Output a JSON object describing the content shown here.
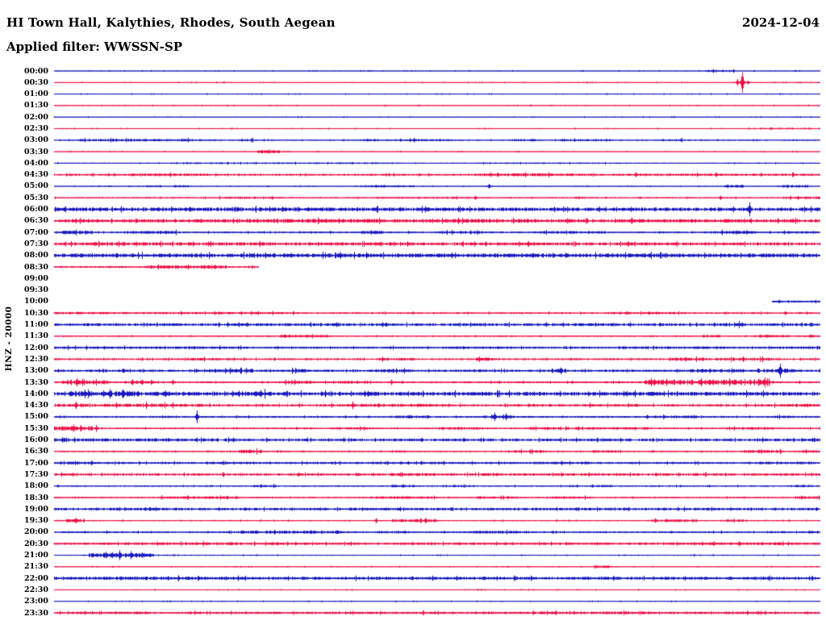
{
  "header": {
    "title": "HI Town Hall, Kalythies, Rhodes, South Aegean",
    "date": "2024-12-04",
    "filter": "Applied filter: WWSSN-SP"
  },
  "axis": {
    "left_label": "HNZ - 20000",
    "row_interval_minutes": 30
  },
  "chart_data": {
    "type": "line",
    "title": "HI Town Hall, Kalythies, Rhodes, South Aegean",
    "subtitle": "Applied filter: WWSSN-SP",
    "date": "2024-12-04",
    "ylabel": "HNZ - 20000",
    "legend_position": "none",
    "grid": false,
    "trace_colors": {
      "even_rows": "#1818bd",
      "odd_rows": "#ec1048"
    },
    "rows": [
      {
        "t": "00:00",
        "base": 0.4,
        "segs": [
          [
            0.85,
            0.89,
            1.2
          ]
        ],
        "spikes": []
      },
      {
        "t": "00:30",
        "base": 0.4,
        "segs": [],
        "spikes": [
          [
            0.899,
            13
          ],
          [
            0.893,
            4
          ],
          [
            0.906,
            3
          ]
        ]
      },
      {
        "t": "01:00",
        "base": 0.4,
        "segs": [],
        "spikes": []
      },
      {
        "t": "01:30",
        "base": 0.4,
        "segs": [],
        "spikes": []
      },
      {
        "t": "02:00",
        "base": 0.4,
        "segs": [
          [
            0.965,
            0.975,
            0.9
          ]
        ],
        "spikes": []
      },
      {
        "t": "02:30",
        "base": 0.45,
        "segs": [
          [
            0.905,
            0.99,
            1.0
          ]
        ],
        "spikes": []
      },
      {
        "t": "03:00",
        "base": 0.7,
        "segs": [
          [
            0.03,
            0.21,
            1.4
          ],
          [
            0.24,
            0.26,
            1.6
          ],
          [
            0.4,
            0.52,
            1.3
          ],
          [
            0.6,
            0.63,
            1.4
          ],
          [
            0.66,
            0.73,
            1.3
          ],
          [
            0.79,
            0.82,
            1.4
          ]
        ],
        "spikes": [
          [
            0.47,
            3
          ]
        ]
      },
      {
        "t": "03:30",
        "base": 0.5,
        "segs": [
          [
            0.265,
            0.295,
            1.8
          ]
        ],
        "spikes": []
      },
      {
        "t": "04:00",
        "base": 0.6,
        "segs": [
          [
            0.15,
            0.45,
            0.9
          ],
          [
            0.55,
            0.75,
            0.8
          ]
        ],
        "spikes": []
      },
      {
        "t": "04:30",
        "base": 1.1,
        "segs": [
          [
            0.1,
            0.2,
            1.6
          ],
          [
            0.55,
            0.65,
            1.7
          ],
          [
            0.55,
            1,
            1.4
          ]
        ],
        "spikes": [
          [
            0.615,
            3
          ],
          [
            0.76,
            3.5
          ],
          [
            0.865,
            2.5
          ]
        ]
      },
      {
        "t": "05:00",
        "base": 0.5,
        "segs": [
          [
            0.12,
            0.14,
            1.2
          ],
          [
            0.155,
            0.175,
            1.4
          ],
          [
            0.4,
            0.47,
            1.3
          ],
          [
            0.875,
            0.9,
            1.5
          ],
          [
            0.945,
            0.985,
            1.4
          ]
        ],
        "spikes": [
          [
            0.568,
            3
          ]
        ]
      },
      {
        "t": "05:30",
        "base": 0.8,
        "segs": [
          [
            0.21,
            0.3,
            1.2
          ],
          [
            0.42,
            0.55,
            1.1
          ],
          [
            0.95,
            1,
            1.5
          ]
        ],
        "spikes": [
          [
            0.55,
            3.5
          ],
          [
            0.685,
            2
          ],
          [
            0.87,
            3
          ]
        ]
      },
      {
        "t": "06:00",
        "base": 2.0,
        "segs": [
          [
            0.0,
            0.5,
            2.2
          ]
        ],
        "spikes": [
          [
            0.908,
            8
          ]
        ]
      },
      {
        "t": "06:30",
        "base": 2.0,
        "segs": [
          [
            0.25,
            0.45,
            2.3
          ],
          [
            0.52,
            0.62,
            2.2
          ]
        ],
        "spikes": [
          [
            0.755,
            4
          ]
        ]
      },
      {
        "t": "07:00",
        "base": 1.0,
        "segs": [
          [
            0.008,
            0.05,
            2.2
          ],
          [
            0.09,
            0.16,
            1.8
          ],
          [
            0.4,
            0.43,
            2.0
          ],
          [
            0.5,
            0.56,
            1.6
          ],
          [
            0.63,
            0.72,
            1.6
          ],
          [
            0.86,
            0.92,
            1.8
          ],
          [
            0.95,
            1,
            1.4
          ]
        ],
        "spikes": []
      },
      {
        "t": "07:30",
        "base": 1.8,
        "segs": [
          [
            0.05,
            0.3,
            2.0
          ]
        ],
        "spikes": [
          [
            0.62,
            4.5
          ]
        ]
      },
      {
        "t": "08:00",
        "base": 2.2,
        "segs": [],
        "spikes": [
          [
            0.035,
            3.5
          ],
          [
            0.3,
            3.5
          ],
          [
            0.87,
            3
          ]
        ]
      },
      {
        "t": "08:30",
        "range": [
          0,
          0.267
        ],
        "base": 1.0,
        "segs": [
          [
            0.12,
            0.225,
            2.0
          ]
        ],
        "spikes": [
          [
            0.21,
            3
          ]
        ]
      },
      {
        "t": "09:00",
        "base": 0,
        "segs": [],
        "spikes": []
      },
      {
        "t": "09:30",
        "base": 0,
        "segs": [],
        "spikes": []
      },
      {
        "t": "10:00",
        "range": [
          0.938,
          1
        ],
        "base": 1.1,
        "segs": [],
        "spikes": [
          [
            0.947,
            2.5
          ]
        ]
      },
      {
        "t": "10:30",
        "base": 1.0,
        "segs": [
          [
            0.0,
            0.3,
            1.3
          ],
          [
            0.72,
            0.82,
            1.4
          ]
        ],
        "spikes": [
          [
            0.955,
            3
          ]
        ]
      },
      {
        "t": "11:00",
        "base": 1.6,
        "segs": [],
        "spikes": [
          [
            0.862,
            3.5
          ],
          [
            0.895,
            4
          ]
        ]
      },
      {
        "t": "11:30",
        "base": 0.7,
        "segs": [
          [
            0.295,
            0.36,
            1.6
          ],
          [
            0.845,
            0.87,
            1.6
          ],
          [
            0.92,
            0.96,
            1.5
          ],
          [
            0.985,
            1,
            1.8
          ]
        ],
        "spikes": [
          [
            0.3,
            2.5
          ],
          [
            0.93,
            2.5
          ]
        ]
      },
      {
        "t": "12:00",
        "base": 1.2,
        "segs": [
          [
            0.0,
            0.25,
            1.4
          ],
          [
            0.52,
            0.6,
            1.5
          ],
          [
            0.74,
            0.88,
            1.5
          ],
          [
            0.94,
            1,
            1.6
          ]
        ],
        "spikes": []
      },
      {
        "t": "12:30",
        "base": 1.1,
        "segs": [
          [
            0.17,
            0.23,
            1.5
          ],
          [
            0.42,
            0.47,
            1.5
          ],
          [
            0.55,
            0.58,
            1.8
          ],
          [
            0.8,
            0.94,
            1.8
          ]
        ],
        "spikes": [
          [
            0.555,
            3.5
          ],
          [
            0.825,
            3
          ],
          [
            0.9,
            4
          ],
          [
            0.925,
            3.5
          ]
        ]
      },
      {
        "t": "13:00",
        "base": 1.3,
        "segs": [
          [
            0.2,
            0.26,
            2.0
          ],
          [
            0.31,
            0.33,
            2.2
          ],
          [
            0.42,
            0.47,
            1.8
          ],
          [
            0.52,
            0.56,
            1.6
          ],
          [
            0.65,
            0.67,
            2.5
          ],
          [
            0.83,
            0.9,
            2.0
          ],
          [
            0.93,
            0.97,
            2.2
          ]
        ],
        "spikes": [
          [
            0.662,
            5
          ],
          [
            0.948,
            12
          ],
          [
            0.92,
            4
          ]
        ]
      },
      {
        "t": "13:30",
        "base": 1.1,
        "segs": [
          [
            0.01,
            0.07,
            2.5
          ],
          [
            0.1,
            0.13,
            2.2
          ],
          [
            0.3,
            0.34,
            1.8
          ],
          [
            0.37,
            0.4,
            1.8
          ],
          [
            0.77,
            0.935,
            3.0
          ]
        ],
        "spikes": [
          [
            0.03,
            5
          ],
          [
            0.115,
            4
          ],
          [
            0.155,
            4
          ],
          [
            0.44,
            3.5
          ],
          [
            0.78,
            5
          ],
          [
            0.8,
            4
          ],
          [
            0.845,
            5
          ],
          [
            0.875,
            4
          ]
        ]
      },
      {
        "t": "14:00",
        "base": 2.2,
        "segs": [
          [
            0.02,
            0.05,
            3.0
          ],
          [
            0.07,
            0.11,
            3.2
          ],
          [
            0.13,
            0.16,
            2.8
          ],
          [
            0.26,
            0.28,
            3.2
          ],
          [
            0.4,
            0.42,
            2.6
          ]
        ],
        "spikes": [
          [
            0.04,
            6
          ],
          [
            0.09,
            7
          ],
          [
            0.145,
            5
          ],
          [
            0.27,
            6
          ],
          [
            0.41,
            4
          ]
        ]
      },
      {
        "t": "14:30",
        "base": 1.3,
        "segs": [
          [
            0.0,
            0.2,
            1.8
          ],
          [
            0.36,
            0.5,
            1.7
          ],
          [
            0.6,
            0.65,
            1.5
          ],
          [
            0.72,
            0.76,
            1.6
          ],
          [
            0.92,
            1,
            1.6
          ]
        ],
        "spikes": [
          [
            0.028,
            5
          ],
          [
            0.12,
            4
          ],
          [
            0.155,
            3.5
          ],
          [
            0.39,
            5
          ],
          [
            0.7,
            3
          ]
        ]
      },
      {
        "t": "15:00",
        "base": 1.0,
        "segs": [
          [
            0.44,
            0.49,
            1.8
          ],
          [
            0.56,
            0.6,
            1.6
          ],
          [
            0.78,
            0.84,
            1.5
          ],
          [
            0.94,
            0.97,
            1.6
          ]
        ],
        "spikes": [
          [
            0.187,
            7
          ],
          [
            0.575,
            7
          ],
          [
            0.59,
            4
          ],
          [
            0.775,
            3
          ]
        ]
      },
      {
        "t": "15:30",
        "base": 0.9,
        "segs": [
          [
            0.0,
            0.05,
            2.5
          ],
          [
            0.36,
            0.42,
            1.4
          ],
          [
            0.5,
            0.56,
            1.5
          ],
          [
            0.62,
            0.78,
            1.5
          ],
          [
            0.88,
            0.94,
            1.5
          ]
        ],
        "spikes": [
          [
            0.025,
            4
          ],
          [
            0.055,
            4
          ]
        ]
      },
      {
        "t": "16:00",
        "base": 1.5,
        "segs": [
          [
            0.0,
            0.25,
            1.8
          ]
        ],
        "spikes": []
      },
      {
        "t": "16:30",
        "base": 0.8,
        "segs": [
          [
            0.24,
            0.27,
            2.0
          ],
          [
            0.44,
            0.46,
            1.5
          ],
          [
            0.6,
            0.64,
            1.6
          ],
          [
            0.7,
            0.74,
            1.5
          ],
          [
            0.9,
            0.95,
            1.8
          ],
          [
            0.97,
            1,
            1.5
          ]
        ],
        "spikes": [
          [
            0.255,
            3
          ]
        ]
      },
      {
        "t": "17:00",
        "base": 1.2,
        "segs": [
          [
            0.0,
            0.06,
            1.6
          ],
          [
            0.2,
            0.26,
            1.5
          ],
          [
            0.42,
            0.52,
            1.5
          ],
          [
            0.63,
            0.7,
            1.4
          ],
          [
            0.92,
            0.99,
            1.5
          ]
        ],
        "spikes": []
      },
      {
        "t": "17:30",
        "base": 1.4,
        "segs": [
          [
            0.44,
            0.58,
            1.6
          ],
          [
            0.78,
            0.86,
            1.6
          ]
        ],
        "spikes": []
      },
      {
        "t": "18:00",
        "base": 0.8,
        "segs": [
          [
            0.26,
            0.29,
            1.5
          ],
          [
            0.44,
            0.47,
            1.6
          ],
          [
            0.52,
            0.55,
            1.4
          ],
          [
            0.7,
            0.73,
            1.3
          ],
          [
            0.96,
            1,
            1.3
          ]
        ],
        "spikes": [
          [
            0.455,
            2.5
          ]
        ]
      },
      {
        "t": "18:30",
        "base": 0.8,
        "segs": [
          [
            0.14,
            0.24,
            1.5
          ],
          [
            0.42,
            0.5,
            1.5
          ],
          [
            0.55,
            0.6,
            1.3
          ],
          [
            0.65,
            0.7,
            1.4
          ],
          [
            0.97,
            1,
            1.5
          ]
        ],
        "spikes": [
          [
            0.175,
            2.5
          ]
        ]
      },
      {
        "t": "19:00",
        "base": 1.5,
        "segs": [],
        "spikes": []
      },
      {
        "t": "19:30",
        "base": 0.7,
        "segs": [
          [
            0.015,
            0.04,
            2.0
          ],
          [
            0.44,
            0.5,
            1.8
          ],
          [
            0.78,
            0.84,
            1.6
          ],
          [
            0.87,
            0.9,
            1.4
          ]
        ],
        "spikes": [
          [
            0.028,
            4
          ],
          [
            0.42,
            3
          ],
          [
            0.485,
            3.5
          ],
          [
            0.8,
            3
          ]
        ]
      },
      {
        "t": "20:00",
        "base": 1.0,
        "segs": [
          [
            0.24,
            0.38,
            1.8
          ],
          [
            0.42,
            0.46,
            1.5
          ],
          [
            0.54,
            0.62,
            1.6
          ],
          [
            0.93,
            0.96,
            1.4
          ],
          [
            0.985,
            1,
            1.6
          ]
        ],
        "spikes": [
          [
            0.335,
            3
          ],
          [
            0.37,
            3
          ]
        ]
      },
      {
        "t": "20:30",
        "base": 1.4,
        "segs": [
          [
            0.1,
            0.3,
            1.6
          ],
          [
            0.45,
            0.55,
            1.5
          ],
          [
            0.83,
            0.95,
            1.6
          ]
        ],
        "spikes": [
          [
            0.895,
            3
          ]
        ]
      },
      {
        "t": "21:00",
        "base": 0.6,
        "segs": [
          [
            0.045,
            0.13,
            2.5
          ]
        ],
        "spikes": [
          [
            0.085,
            6
          ],
          [
            0.1,
            5
          ],
          [
            0.065,
            4
          ],
          [
            0.115,
            4
          ],
          [
            0.61,
            1.5
          ]
        ]
      },
      {
        "t": "21:30",
        "base": 0.45,
        "segs": [
          [
            0.705,
            0.725,
            1.4
          ]
        ],
        "spikes": []
      },
      {
        "t": "22:00",
        "base": 1.7,
        "segs": [
          [
            0.05,
            0.2,
            2.0
          ]
        ],
        "spikes": []
      },
      {
        "t": "22:30",
        "base": 0.45,
        "segs": [],
        "spikes": []
      },
      {
        "t": "23:00",
        "base": 0.45,
        "segs": [],
        "spikes": []
      },
      {
        "t": "23:30",
        "base": 1.3,
        "segs": [
          [
            0.08,
            0.12,
            1.6
          ],
          [
            0.17,
            0.19,
            1.5
          ],
          [
            0.55,
            0.6,
            1.5
          ],
          [
            0.63,
            0.67,
            1.6
          ],
          [
            0.72,
            0.78,
            1.7
          ],
          [
            0.87,
            0.92,
            1.6
          ]
        ],
        "spikes": [
          [
            0.04,
            2.5
          ],
          [
            0.92,
            2.5
          ]
        ]
      }
    ]
  }
}
